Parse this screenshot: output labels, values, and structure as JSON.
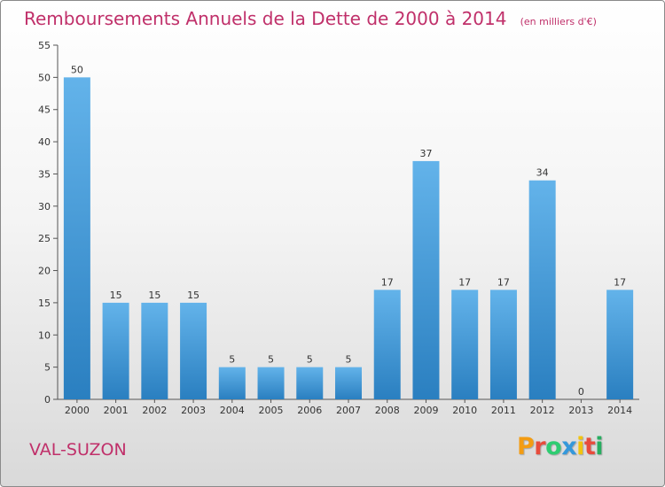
{
  "title": "Remboursements Annuels de la Dette de 2000 à 2014",
  "subtitle": "(en milliers d'€)",
  "commune": "VAL-SUZON",
  "brand": "Proxiti",
  "brand_colors": [
    "#f39c12",
    "#e74c3c",
    "#2ecc71",
    "#3498db",
    "#f1c40f",
    "#e74c3c",
    "#27ae60"
  ],
  "colors": {
    "title": "#c0306a",
    "bar_top": "#63b3ea",
    "bar_bottom": "#2a7fc0"
  },
  "chart_data": {
    "type": "bar",
    "categories": [
      "2000",
      "2001",
      "2002",
      "2003",
      "2004",
      "2005",
      "2006",
      "2007",
      "2008",
      "2009",
      "2010",
      "2011",
      "2012",
      "2013",
      "2014"
    ],
    "values": [
      50,
      15,
      15,
      15,
      5,
      5,
      5,
      5,
      17,
      37,
      17,
      17,
      34,
      0,
      17
    ],
    "title": "Remboursements Annuels de la Dette de 2000 à 2014",
    "subtitle": "(en milliers d'€)",
    "xlabel": "",
    "ylabel": "",
    "ylim": [
      0,
      55
    ],
    "yticks": [
      0,
      5,
      10,
      15,
      20,
      25,
      30,
      35,
      40,
      45,
      50,
      55
    ],
    "grid": false,
    "legend": "none"
  }
}
